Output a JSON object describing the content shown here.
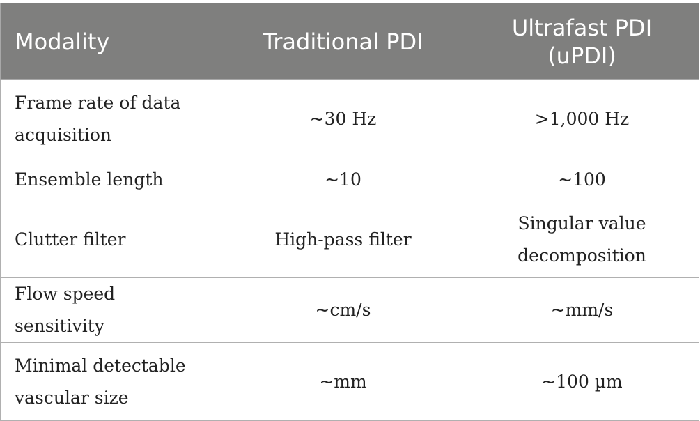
{
  "table": {
    "headers": [
      "Modality",
      "Traditional PDI",
      "Ultrafast PDI (uPDI)"
    ],
    "rows": [
      [
        "Frame rate of data acquisition",
        "~30 Hz",
        ">1,000 Hz"
      ],
      [
        "Ensemble length",
        "~10",
        "~100"
      ],
      [
        "Clutter filter",
        "High-pass filter",
        "Singular value decomposition"
      ],
      [
        "Flow speed sensitivity",
        "~cm/s",
        "~mm/s"
      ],
      [
        "Minimal detectable vascular size",
        "~mm",
        "~100 µm"
      ]
    ]
  },
  "colors": {
    "header_bg": "#7f7f7e",
    "header_text": "#ffffff",
    "border": "#b0b0b0",
    "body_text": "#222222"
  }
}
